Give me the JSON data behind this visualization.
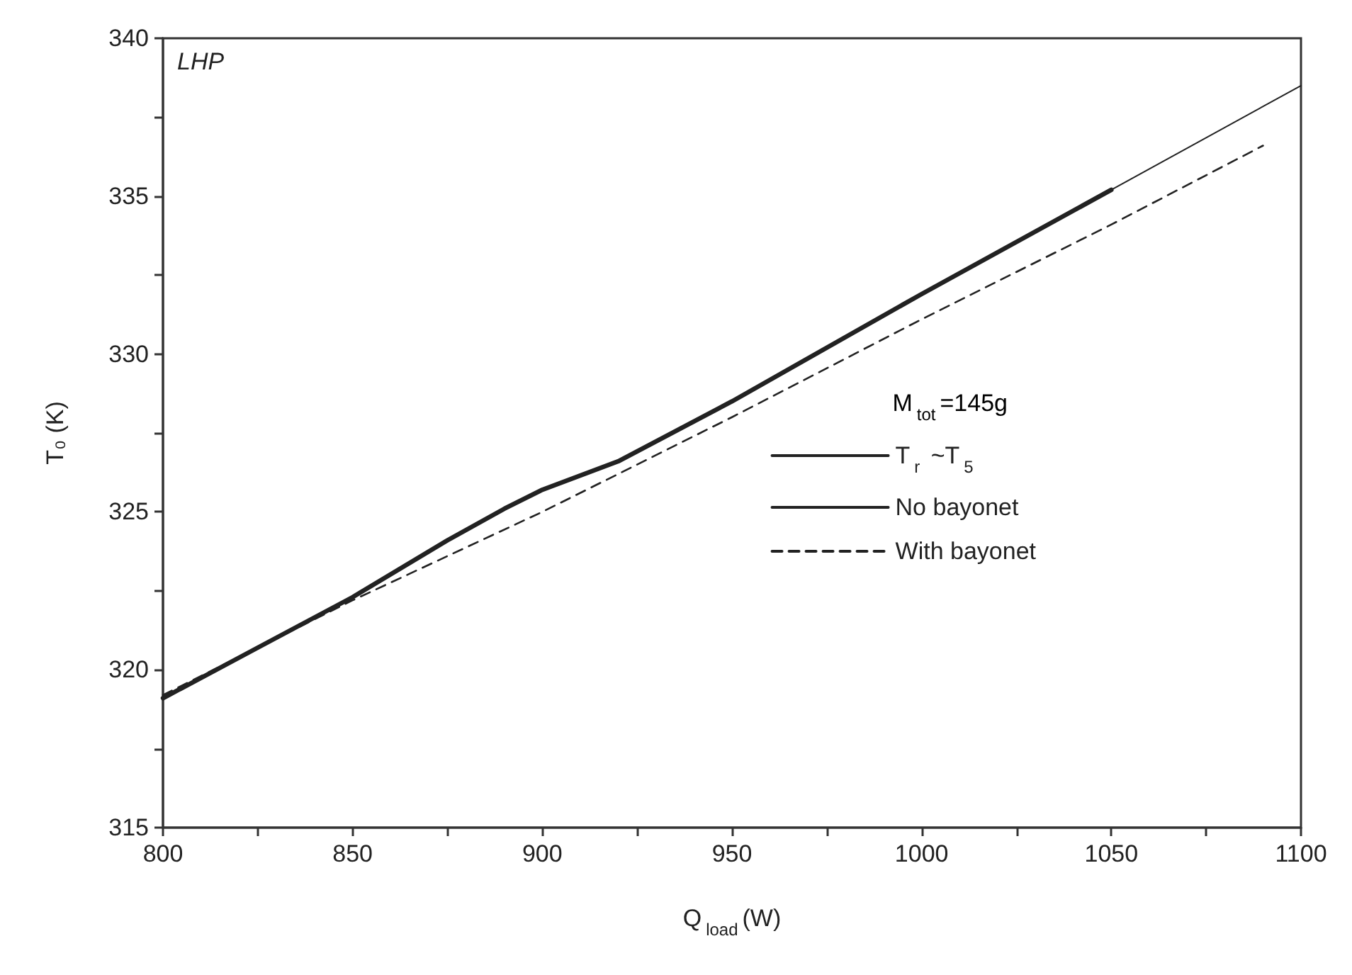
{
  "chart_data": {
    "type": "line",
    "xlabel": "Q$_{load}$(W)",
    "ylabel": "T₀ (K)",
    "legend_title": "M$_{tot}$=145g",
    "annotations": [
      "LHP"
    ],
    "xlim": [
      800,
      1100
    ],
    "xticks": [
      800,
      850,
      900,
      950,
      1000,
      1050,
      1100
    ],
    "ylim": [
      315,
      340
    ],
    "yticks": [
      315,
      320,
      325,
      330,
      335,
      340
    ],
    "grid": false,
    "legend": "right",
    "marker": "none",
    "line_style": "solid",
    "series": [
      {
        "name": "T$_{r}$ ~T$_{5}$",
        "color": "#222222",
        "x": [
          800,
          825,
          850,
          875,
          890,
          900,
          920,
          950,
          1000,
          1050
        ],
        "values": [
          319.1,
          320.7,
          322.3,
          324.1,
          325.1,
          325.7,
          326.6,
          328.5,
          331.9,
          335.2
        ]
      },
      {
        "name": "No bayonet",
        "color": "#222222",
        "x": [
          1050,
          1100
        ],
        "values": [
          335.2,
          338.5
        ]
      },
      {
        "name": "With bayonet",
        "color": "#222222",
        "line_style": "dashed",
        "x": [
          800,
          825,
          850,
          875,
          900,
          925,
          950,
          1000,
          1050,
          1090
        ],
        "values": [
          319.2,
          320.7,
          322.2,
          323.6,
          325.0,
          326.5,
          328.0,
          331.1,
          334.1,
          336.6
        ]
      }
    ]
  }
}
